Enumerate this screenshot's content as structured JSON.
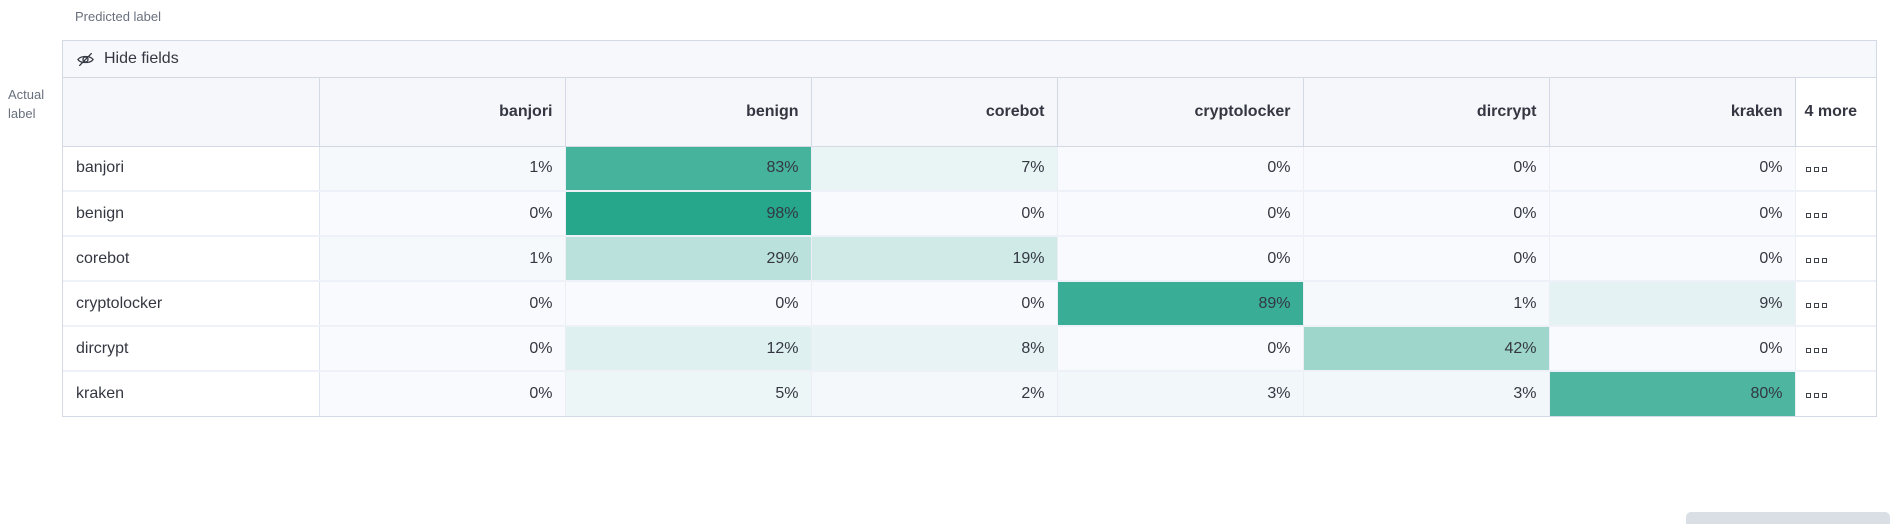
{
  "axis": {
    "predicted": "Predicted label",
    "actual": "Actual label"
  },
  "toolbar": {
    "hide_fields_label": "Hide fields",
    "icon": "eye-slash-icon"
  },
  "colors": {
    "heat_min": "#f8fafd",
    "heat_max": "#22a489",
    "header_bg": "#f5f7fa",
    "toolbar_bg": "#f7f8fc",
    "border": "#d3dae6",
    "text": "#343741",
    "muted_text": "#69707d"
  },
  "chart_data": {
    "type": "heatmap",
    "columns": [
      "banjori",
      "benign",
      "corebot",
      "cryptolocker",
      "dircrypt",
      "kraken"
    ],
    "more_column_label": "4 more",
    "value_suffix": "%",
    "rows": [
      {
        "label": "banjori",
        "values": [
          1,
          83,
          7,
          0,
          0,
          0
        ]
      },
      {
        "label": "benign",
        "values": [
          0,
          98,
          0,
          0,
          0,
          0
        ]
      },
      {
        "label": "corebot",
        "values": [
          1,
          29,
          19,
          0,
          0,
          0
        ]
      },
      {
        "label": "cryptolocker",
        "values": [
          0,
          0,
          0,
          89,
          1,
          9
        ]
      },
      {
        "label": "dircrypt",
        "values": [
          0,
          12,
          8,
          0,
          42,
          0
        ]
      },
      {
        "label": "kraken",
        "values": [
          0,
          5,
          2,
          3,
          3,
          80
        ]
      }
    ],
    "scale": {
      "min": 0,
      "max": 100,
      "min_color": "#f8fafd",
      "max_color": "#22a489"
    },
    "layout": {
      "label_col_width": 256,
      "data_col_width": 246,
      "more_col_width": 81
    }
  }
}
